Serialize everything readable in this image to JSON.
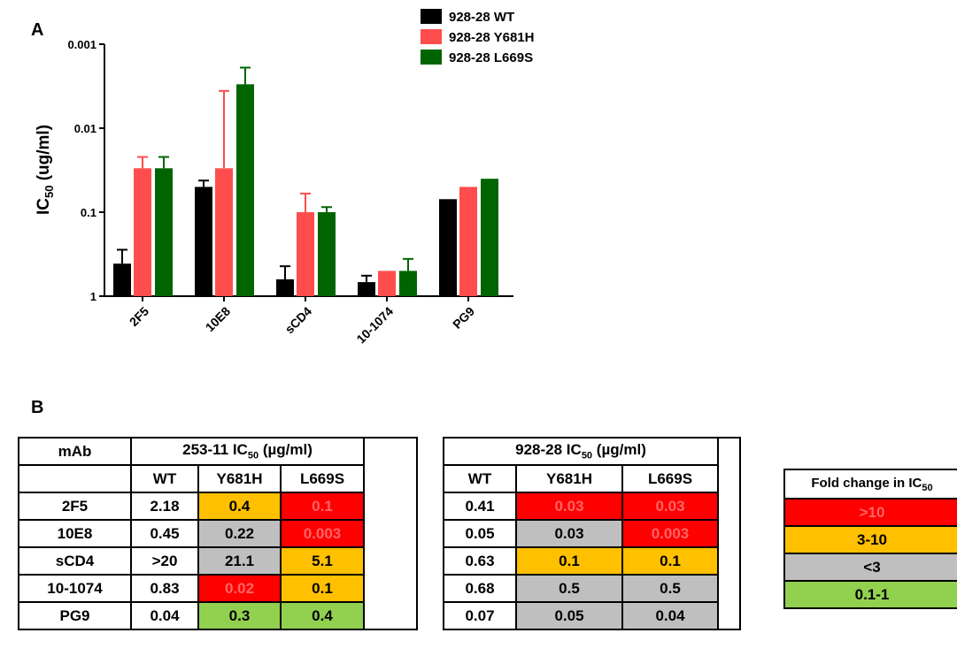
{
  "chart_data": {
    "type": "bar",
    "panel_label": "A",
    "y_label": {
      "text": "IC",
      "sub": "50",
      "rest": " (ug/ml)"
    },
    "log_y": true,
    "categories": [
      "2F5",
      "10E8",
      "sCD4",
      "10-1074",
      "PG9"
    ],
    "series": [
      {
        "name": "928-28 WT",
        "color": "#000000",
        "values": [
          0.41,
          0.05,
          0.63,
          0.68,
          0.07
        ],
        "error_ends": [
          0.28,
          0.042,
          0.44,
          0.57,
          null
        ]
      },
      {
        "name": "928-28 Y681H",
        "color": "#ff4d4d",
        "values": [
          0.03,
          0.03,
          0.1,
          0.5,
          0.05
        ],
        "error_ends": [
          0.022,
          0.0036,
          0.06,
          null,
          null
        ]
      },
      {
        "name": "928-28 L669S",
        "color": "#006400",
        "values": [
          0.03,
          0.003,
          0.1,
          0.5,
          0.04
        ],
        "error_ends": [
          0.022,
          0.0019,
          0.087,
          0.36,
          null
        ]
      }
    ],
    "ylim": [
      1,
      0.001
    ],
    "yticks": [
      0.001,
      0.01,
      0.1,
      1
    ]
  },
  "panel_b_label": "B",
  "tables": [
    {
      "first_header": "mAb",
      "group": {
        "text": "253-11 IC",
        "sub": "50",
        "rest": " (µg/ml)"
      },
      "columns": [
        "WT",
        "Y681H",
        "L669S"
      ],
      "rows": [
        {
          "label": "2F5",
          "cells": [
            {
              "text": "2.18"
            },
            {
              "text": "0.4",
              "fill": "#ffc000"
            },
            {
              "text": "0.1",
              "fill": "#ff0000"
            }
          ]
        },
        {
          "label": "10E8",
          "cells": [
            {
              "text": "0.45"
            },
            {
              "text": "0.22",
              "fill": "#bfbfbf"
            },
            {
              "text": "0.003",
              "fill": "#ff0000"
            }
          ]
        },
        {
          "label": "sCD4",
          "cells": [
            {
              "text": ">20"
            },
            {
              "text": "21.1",
              "fill": "#bfbfbf"
            },
            {
              "text": "5.1",
              "fill": "#ffc000"
            }
          ]
        },
        {
          "label": "10-1074",
          "cells": [
            {
              "text": "0.83"
            },
            {
              "text": "0.02",
              "fill": "#ff0000"
            },
            {
              "text": "0.1",
              "fill": "#ffc000"
            }
          ]
        },
        {
          "label": "PG9",
          "cells": [
            {
              "text": "0.04"
            },
            {
              "text": "0.3",
              "fill": "#92d050"
            },
            {
              "text": "0.4",
              "fill": "#92d050"
            }
          ]
        }
      ]
    },
    {
      "group": {
        "text": "928-28 IC",
        "sub": "50",
        "rest": " (µg/ml)"
      },
      "columns": [
        "WT",
        "Y681H",
        "L669S"
      ],
      "rows": [
        {
          "cells": [
            {
              "text": "0.41"
            },
            {
              "text": "0.03",
              "fill": "#ff0000"
            },
            {
              "text": "0.03",
              "fill": "#ff0000"
            }
          ]
        },
        {
          "cells": [
            {
              "text": "0.05"
            },
            {
              "text": "0.03",
              "fill": "#bfbfbf"
            },
            {
              "text": "0.003",
              "fill": "#ff0000"
            }
          ]
        },
        {
          "cells": [
            {
              "text": "0.63"
            },
            {
              "text": "0.1",
              "fill": "#ffc000"
            },
            {
              "text": "0.1",
              "fill": "#ffc000"
            }
          ]
        },
        {
          "cells": [
            {
              "text": "0.68"
            },
            {
              "text": "0.5",
              "fill": "#bfbfbf"
            },
            {
              "text": "0.5",
              "fill": "#bfbfbf"
            }
          ]
        },
        {
          "cells": [
            {
              "text": "0.07"
            },
            {
              "text": "0.05",
              "fill": "#bfbfbf"
            },
            {
              "text": "0.04",
              "fill": "#bfbfbf"
            }
          ]
        }
      ]
    }
  ],
  "fold_legend": {
    "title": {
      "text": "Fold change  in IC",
      "sub": "50"
    },
    "items": [
      {
        "label": ">10",
        "fill": "#ff0000"
      },
      {
        "label": "3-10",
        "fill": "#ffc000"
      },
      {
        "label": "<3",
        "fill": "#bfbfbf"
      },
      {
        "label": "0.1-1",
        "fill": "#92d050"
      }
    ]
  }
}
